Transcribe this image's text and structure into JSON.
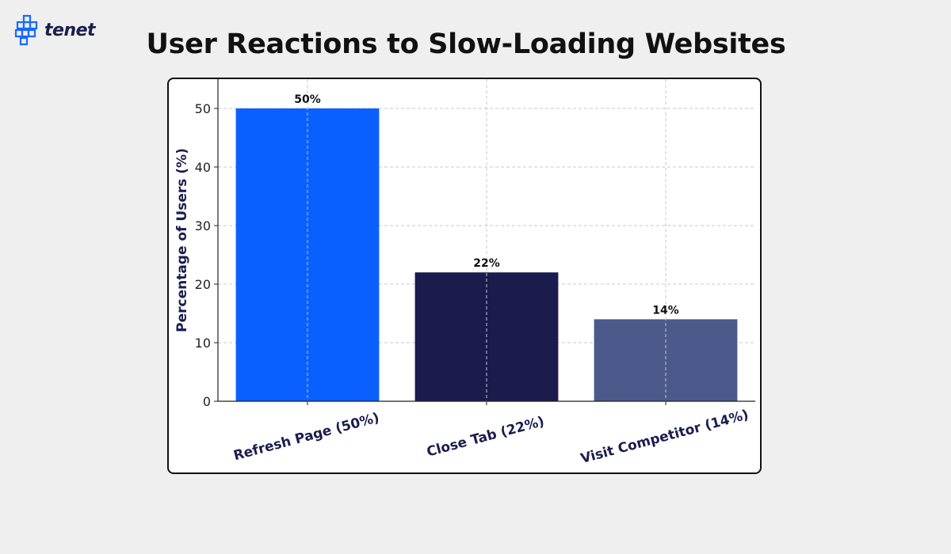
{
  "brand": {
    "name": "tenet",
    "logo_icon": "tenet-logo-icon",
    "color": "#1769ff"
  },
  "chart_data": {
    "type": "bar",
    "title": "User Reactions to Slow-Loading Websites",
    "xlabel": "",
    "ylabel": "Percentage of Users (%)",
    "categories": [
      "Refresh Page (50%)",
      "Close Tab (22%)",
      "Visit Competitor (14%)"
    ],
    "values": [
      50,
      22,
      14
    ],
    "data_labels": [
      "50%",
      "22%",
      "14%"
    ],
    "colors": [
      "#0960fe",
      "#1c1b4d",
      "#4b5a8b"
    ],
    "ylim": [
      0,
      55
    ],
    "yticks": [
      0,
      10,
      20,
      30,
      40,
      50
    ],
    "grid": true,
    "label_color": "#1b1d4e"
  }
}
